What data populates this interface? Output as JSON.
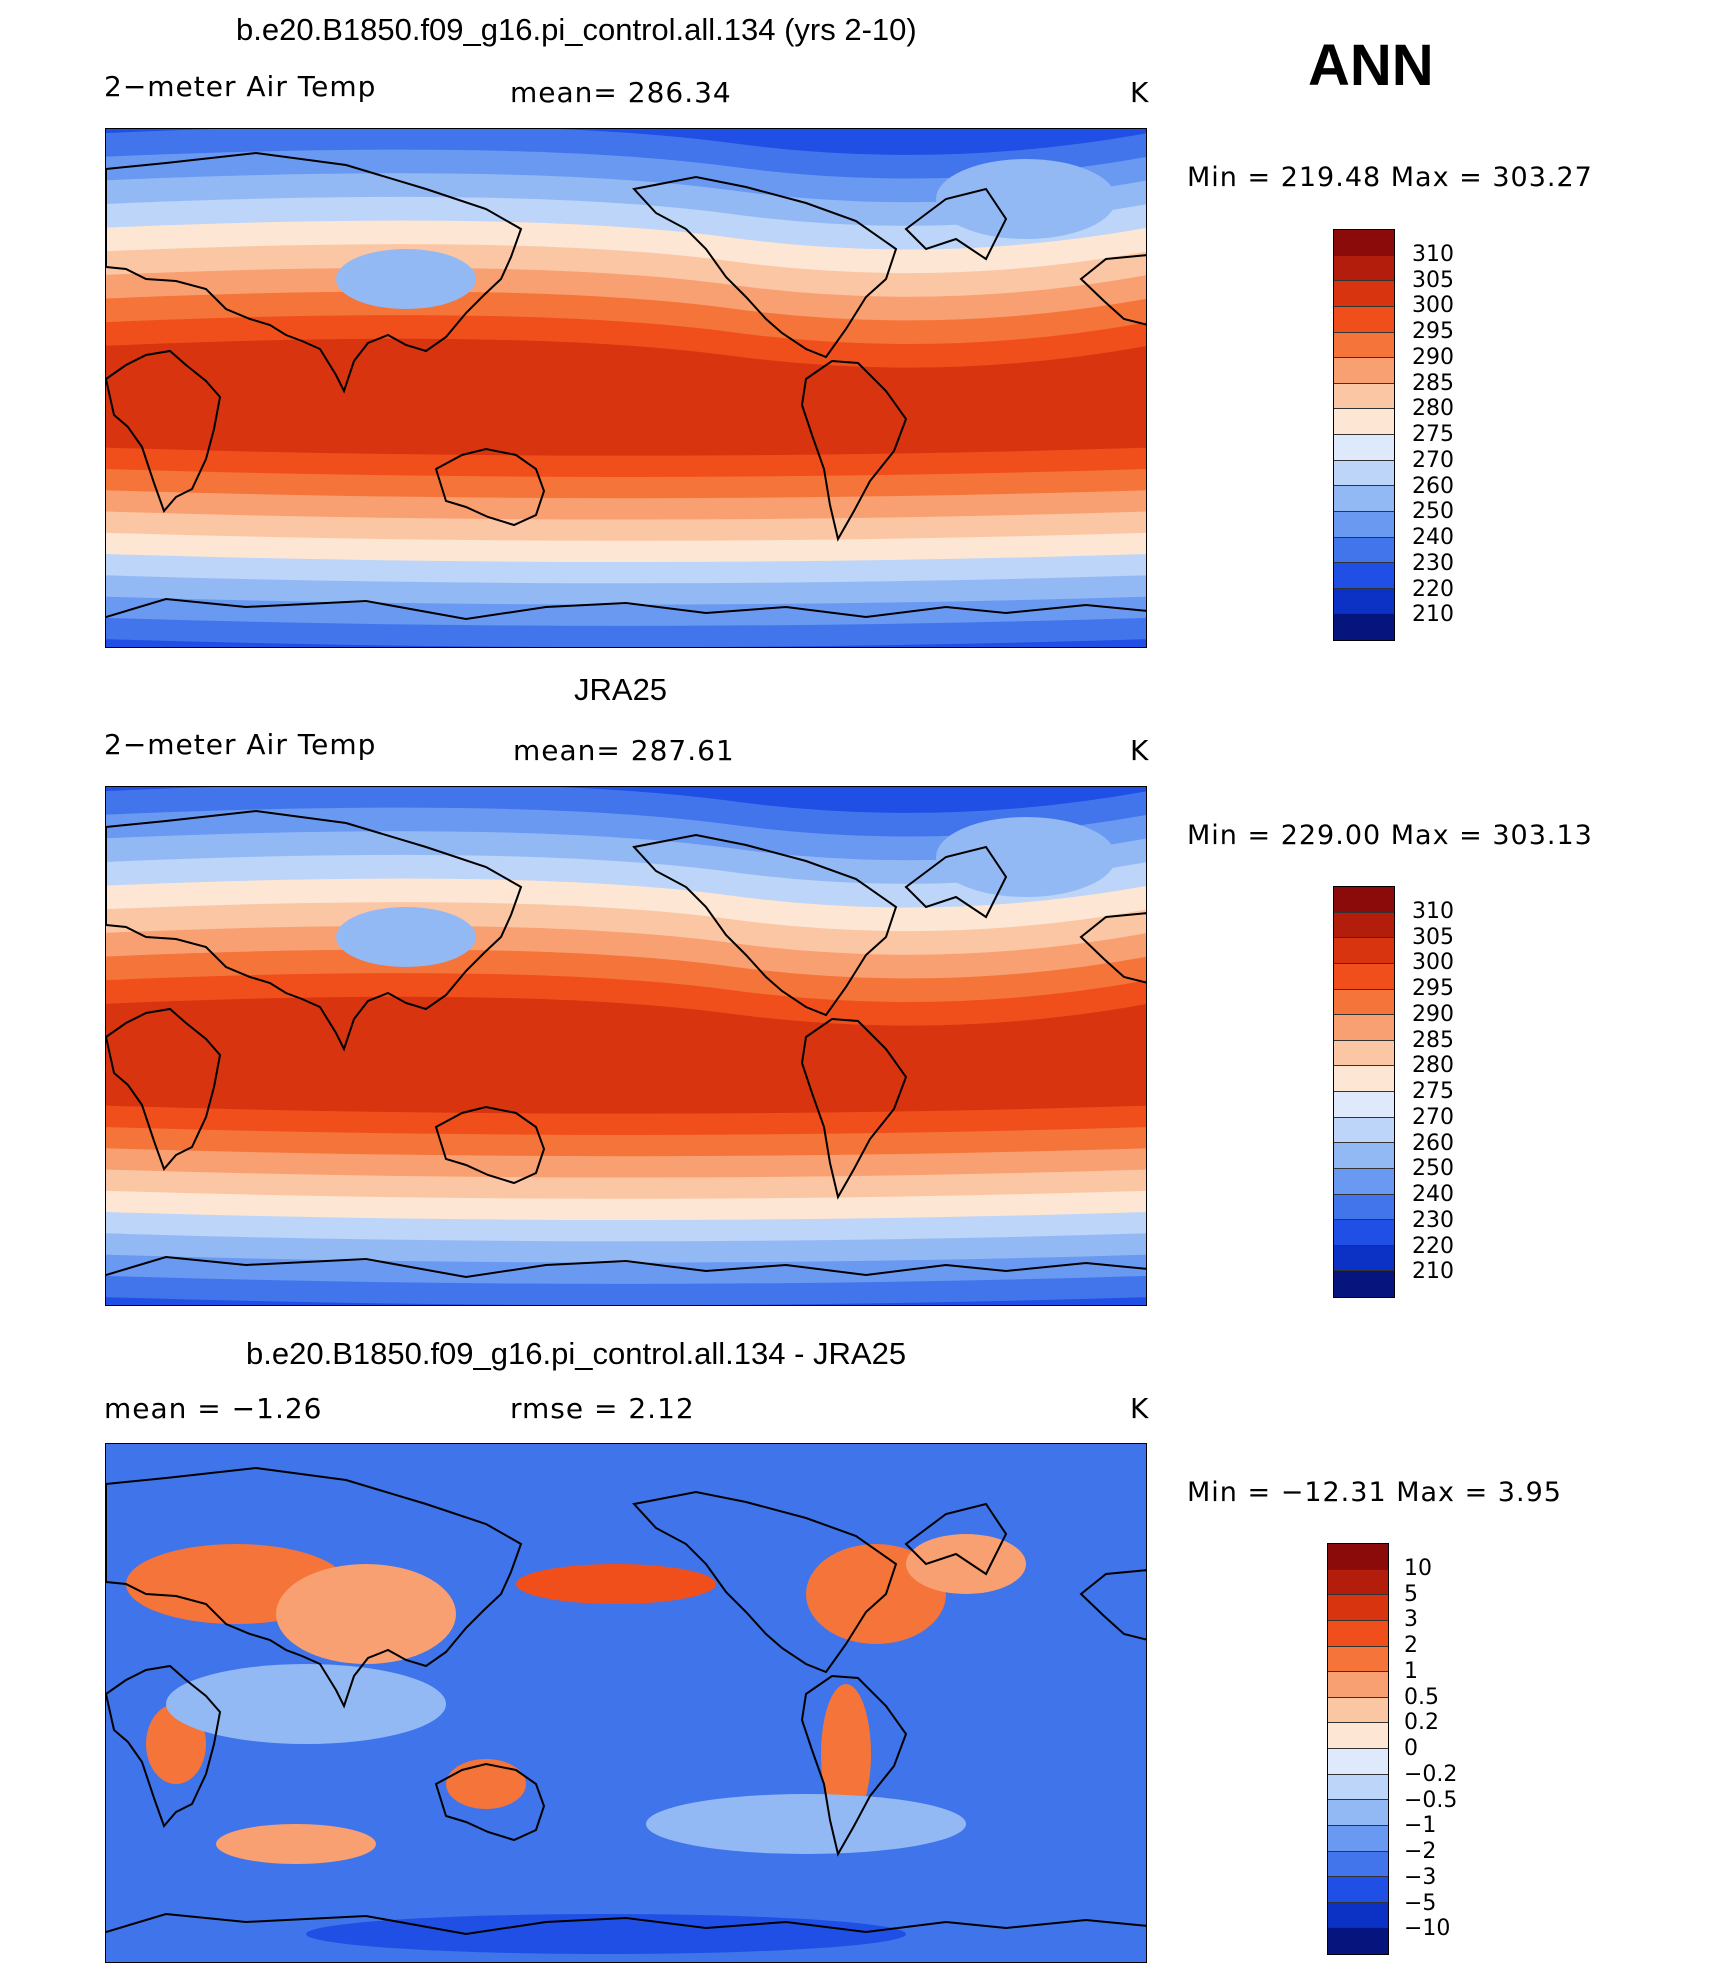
{
  "season": "ANN",
  "panels": [
    {
      "title": "b.e20.B1850.f09_g16.pi_control.all.134 (yrs 2-10)",
      "left": "2−meter Air Temp",
      "mid": "mean= 286.34",
      "units": "K",
      "minmax": "Min = 219.48 Max = 303.27"
    },
    {
      "title": "JRA25",
      "left": "2−meter Air Temp",
      "mid": "mean= 287.61",
      "units": "K",
      "minmax": "Min = 229.00 Max = 303.13"
    },
    {
      "title": "b.e20.B1850.f09_g16.pi_control.all.134 - JRA25",
      "left": "mean =   −1.26",
      "mid": "rmse =    2.12",
      "units": "K",
      "minmax": "Min = −12.31 Max =     3.95"
    }
  ],
  "colorbars": {
    "temperature": {
      "labels": [
        "310",
        "305",
        "300",
        "295",
        "290",
        "285",
        "280",
        "275",
        "270",
        "260",
        "250",
        "240",
        "230",
        "220",
        "210"
      ],
      "colors": [
        "#8b0a0a",
        "#b31e0c",
        "#d8340f",
        "#f04f1c",
        "#f4743a",
        "#f8a071",
        "#fbc6a4",
        "#fde6d3",
        "#deeafb",
        "#bcd5f8",
        "#93b9f5",
        "#6a99f1",
        "#4275ec",
        "#1f4fe4",
        "#0b32c4",
        "#06147e"
      ]
    },
    "difference": {
      "labels": [
        "10",
        "5",
        "3",
        "2",
        "1",
        "0.5",
        "0.2",
        "0",
        "−0.2",
        "−0.5",
        "−1",
        "−2",
        "−3",
        "−5",
        "−10"
      ],
      "colors": [
        "#8b0a0a",
        "#b31e0c",
        "#d8340f",
        "#f04f1c",
        "#f4743a",
        "#f8a071",
        "#fbc6a4",
        "#fde6d3",
        "#deeafb",
        "#bcd5f8",
        "#93b9f5",
        "#6a99f1",
        "#4275ec",
        "#1f4fe4",
        "#0b32c4",
        "#06147e"
      ]
    }
  },
  "maps": {
    "temperature_bands": [
      "#1f4fe4",
      "#4275ec",
      "#6a99f1",
      "#93b9f5",
      "#bcd5f8",
      "#fde6d3",
      "#fbc6a4",
      "#f8a071",
      "#f4743a",
      "#f04f1c",
      "#d8340f"
    ],
    "difference_background": "#3f74ea",
    "coastline_color": "#000000"
  }
}
